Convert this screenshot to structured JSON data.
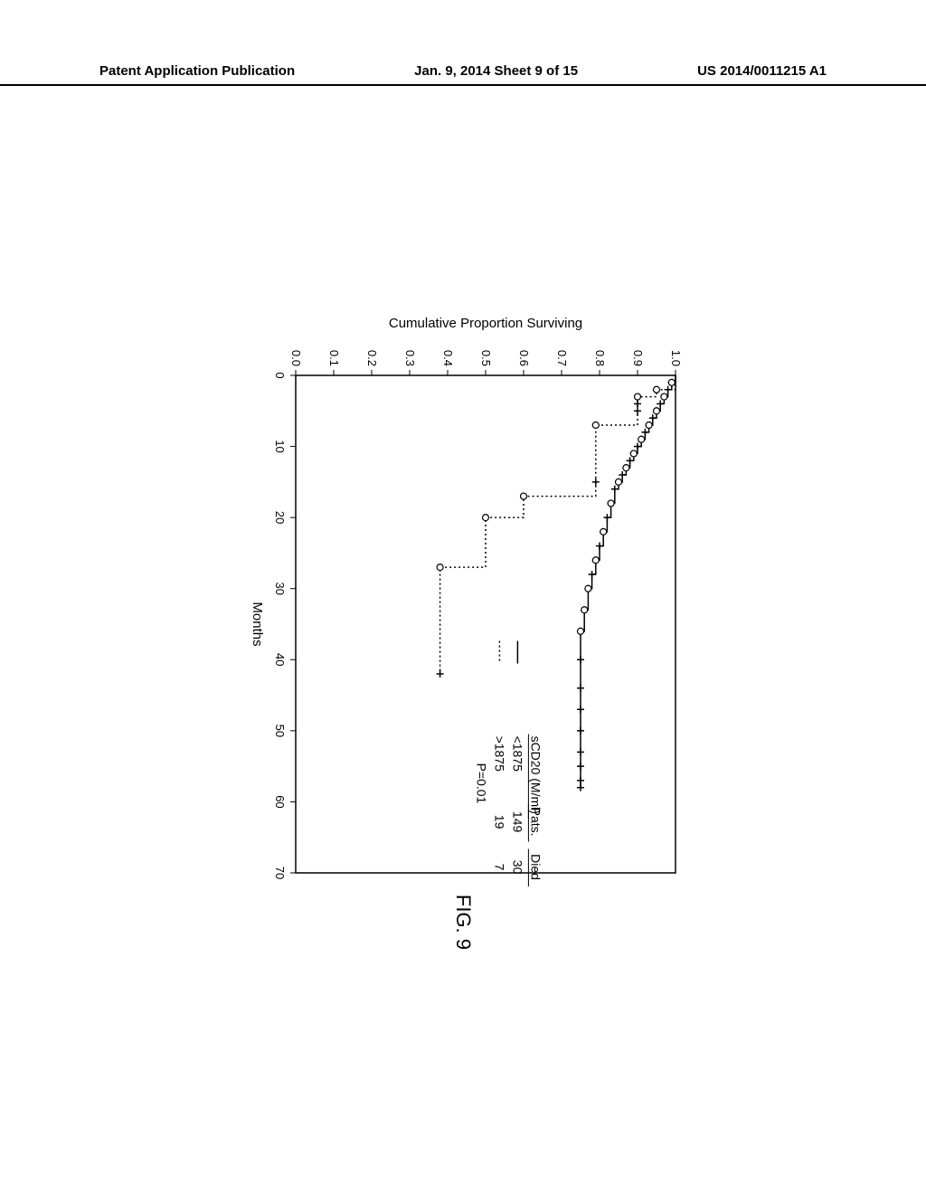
{
  "header": {
    "left": "Patent Application Publication",
    "center": "Jan. 9, 2014  Sheet 9 of 15",
    "right": "US 2014/0011215 A1"
  },
  "figure_label": "FIG. 9",
  "chart": {
    "type": "survival-step",
    "x_label": "Months",
    "y_label": "Cumulative Proportion Surviving",
    "xlim": [
      0,
      70
    ],
    "ylim": [
      0,
      1.0
    ],
    "xticks": [
      0,
      10,
      20,
      30,
      40,
      50,
      60,
      70
    ],
    "yticks": [
      0.0,
      0.1,
      0.2,
      0.3,
      0.4,
      0.5,
      0.6,
      0.7,
      0.8,
      0.9,
      1.0
    ],
    "font_size_axis": 15,
    "font_size_tick": 13,
    "font_size_legend": 14,
    "line_color": "#000000",
    "marker_color_open": "#ffffff",
    "marker_stroke": "#000000",
    "background": "#ffffff",
    "legend": {
      "title": "sCD20 (M/ml)",
      "col_pats": "Pats.",
      "col_died": "Died",
      "rows": [
        {
          "line": "solid",
          "label": "<1875",
          "pats": "149",
          "died": "30"
        },
        {
          "line": "dotted",
          "label": ">1875",
          "pats": "19",
          "died": "7"
        }
      ],
      "pvalue": "P=0.01"
    },
    "series": [
      {
        "name": "low",
        "dash": "solid",
        "points": [
          [
            0,
            1.0
          ],
          [
            1,
            0.99
          ],
          [
            2,
            0.98
          ],
          [
            3,
            0.97
          ],
          [
            4,
            0.96
          ],
          [
            5,
            0.95
          ],
          [
            6,
            0.94
          ],
          [
            7,
            0.93
          ],
          [
            8,
            0.92
          ],
          [
            9,
            0.91
          ],
          [
            10,
            0.9
          ],
          [
            11,
            0.89
          ],
          [
            12,
            0.88
          ],
          [
            13,
            0.87
          ],
          [
            14,
            0.86
          ],
          [
            15,
            0.85
          ],
          [
            16,
            0.84
          ],
          [
            18,
            0.83
          ],
          [
            20,
            0.82
          ],
          [
            22,
            0.81
          ],
          [
            24,
            0.8
          ],
          [
            26,
            0.79
          ],
          [
            28,
            0.78
          ],
          [
            30,
            0.77
          ],
          [
            33,
            0.76
          ],
          [
            36,
            0.75
          ],
          [
            58,
            0.75
          ]
        ],
        "censors": [
          1,
          2,
          3,
          4,
          5,
          6,
          7,
          8,
          9,
          10,
          11,
          12,
          13,
          14,
          15,
          16,
          18,
          20,
          22,
          24,
          26,
          28,
          30,
          33,
          36,
          40,
          44,
          47,
          50,
          53,
          55,
          57,
          58
        ],
        "events": [
          1,
          3,
          5,
          7,
          9,
          11,
          13,
          15,
          18,
          22,
          26,
          30,
          33,
          36
        ]
      },
      {
        "name": "high",
        "dash": "dotted",
        "points": [
          [
            0,
            1.0
          ],
          [
            2,
            0.95
          ],
          [
            3,
            0.9
          ],
          [
            4,
            0.9
          ],
          [
            5,
            0.9
          ],
          [
            7,
            0.79
          ],
          [
            8,
            0.79
          ],
          [
            15,
            0.79
          ],
          [
            17,
            0.6
          ],
          [
            20,
            0.5
          ],
          [
            27,
            0.38
          ],
          [
            42,
            0.38
          ]
        ],
        "censors": [
          4,
          5,
          7,
          15,
          42
        ],
        "events": [
          2,
          3,
          7,
          17,
          20,
          27
        ]
      }
    ]
  }
}
